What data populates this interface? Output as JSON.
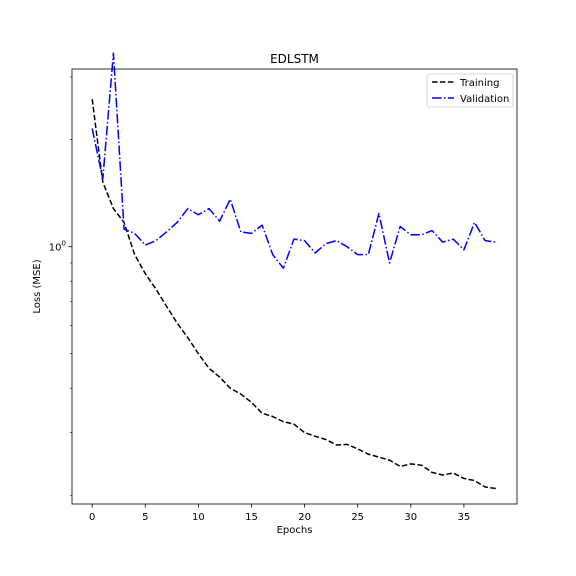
{
  "chart_data": {
    "type": "line",
    "title": "EDLSTM",
    "xlabel": "Epochs",
    "ylabel": "Loss (MSE)",
    "x_ticks": [
      0,
      5,
      10,
      15,
      20,
      25,
      30,
      35
    ],
    "x_tick_labels": [
      "0",
      "5",
      "10",
      "15",
      "20",
      "25",
      "30",
      "35"
    ],
    "xlim": [
      -1.9,
      40.0
    ],
    "y_scale": "log",
    "ylim": [
      0.189,
      3.16
    ],
    "y_major_tick": 1.0,
    "y_major_tick_label": "10",
    "y_major_tick_exponent": "0",
    "y_minor_ticks": [
      0.2,
      0.3,
      0.4,
      0.5,
      0.6,
      0.7,
      0.8,
      0.9,
      2.0,
      3.0
    ],
    "grid": false,
    "legend_position": "upper right",
    "series": [
      {
        "name": "Training",
        "color": "#000000",
        "dash": "dashed",
        "x": [
          0,
          1,
          2,
          3,
          4,
          5,
          6,
          7,
          8,
          9,
          10,
          11,
          12,
          13,
          14,
          15,
          16,
          17,
          18,
          19,
          20,
          21,
          22,
          23,
          24,
          25,
          26,
          27,
          28,
          29,
          30,
          31,
          32,
          33,
          34,
          35,
          36,
          37,
          38
        ],
        "values": [
          2.6,
          1.52,
          1.28,
          1.17,
          0.95,
          0.84,
          0.76,
          0.68,
          0.61,
          0.555,
          0.5,
          0.455,
          0.43,
          0.4,
          0.385,
          0.365,
          0.34,
          0.333,
          0.322,
          0.317,
          0.3,
          0.293,
          0.287,
          0.277,
          0.278,
          0.27,
          0.261,
          0.256,
          0.251,
          0.241,
          0.245,
          0.243,
          0.232,
          0.228,
          0.231,
          0.223,
          0.22,
          0.211,
          0.209
        ]
      },
      {
        "name": "Validation",
        "color": "#0000ff",
        "dash": "dashdot",
        "x": [
          0,
          1,
          2,
          3,
          4,
          5,
          6,
          7,
          8,
          9,
          10,
          11,
          12,
          13,
          14,
          15,
          16,
          17,
          18,
          19,
          20,
          21,
          22,
          23,
          24,
          25,
          26,
          27,
          28,
          29,
          30,
          31,
          32,
          33,
          34,
          35,
          36,
          37,
          38
        ],
        "values": [
          2.15,
          1.55,
          3.5,
          1.12,
          1.09,
          1.01,
          1.04,
          1.1,
          1.17,
          1.28,
          1.23,
          1.28,
          1.18,
          1.36,
          1.1,
          1.09,
          1.15,
          0.95,
          0.87,
          1.05,
          1.04,
          0.96,
          1.02,
          1.04,
          1.0,
          0.95,
          0.95,
          1.24,
          0.9,
          1.14,
          1.08,
          1.08,
          1.11,
          1.03,
          1.05,
          0.98,
          1.17,
          1.04,
          1.03
        ]
      }
    ]
  }
}
